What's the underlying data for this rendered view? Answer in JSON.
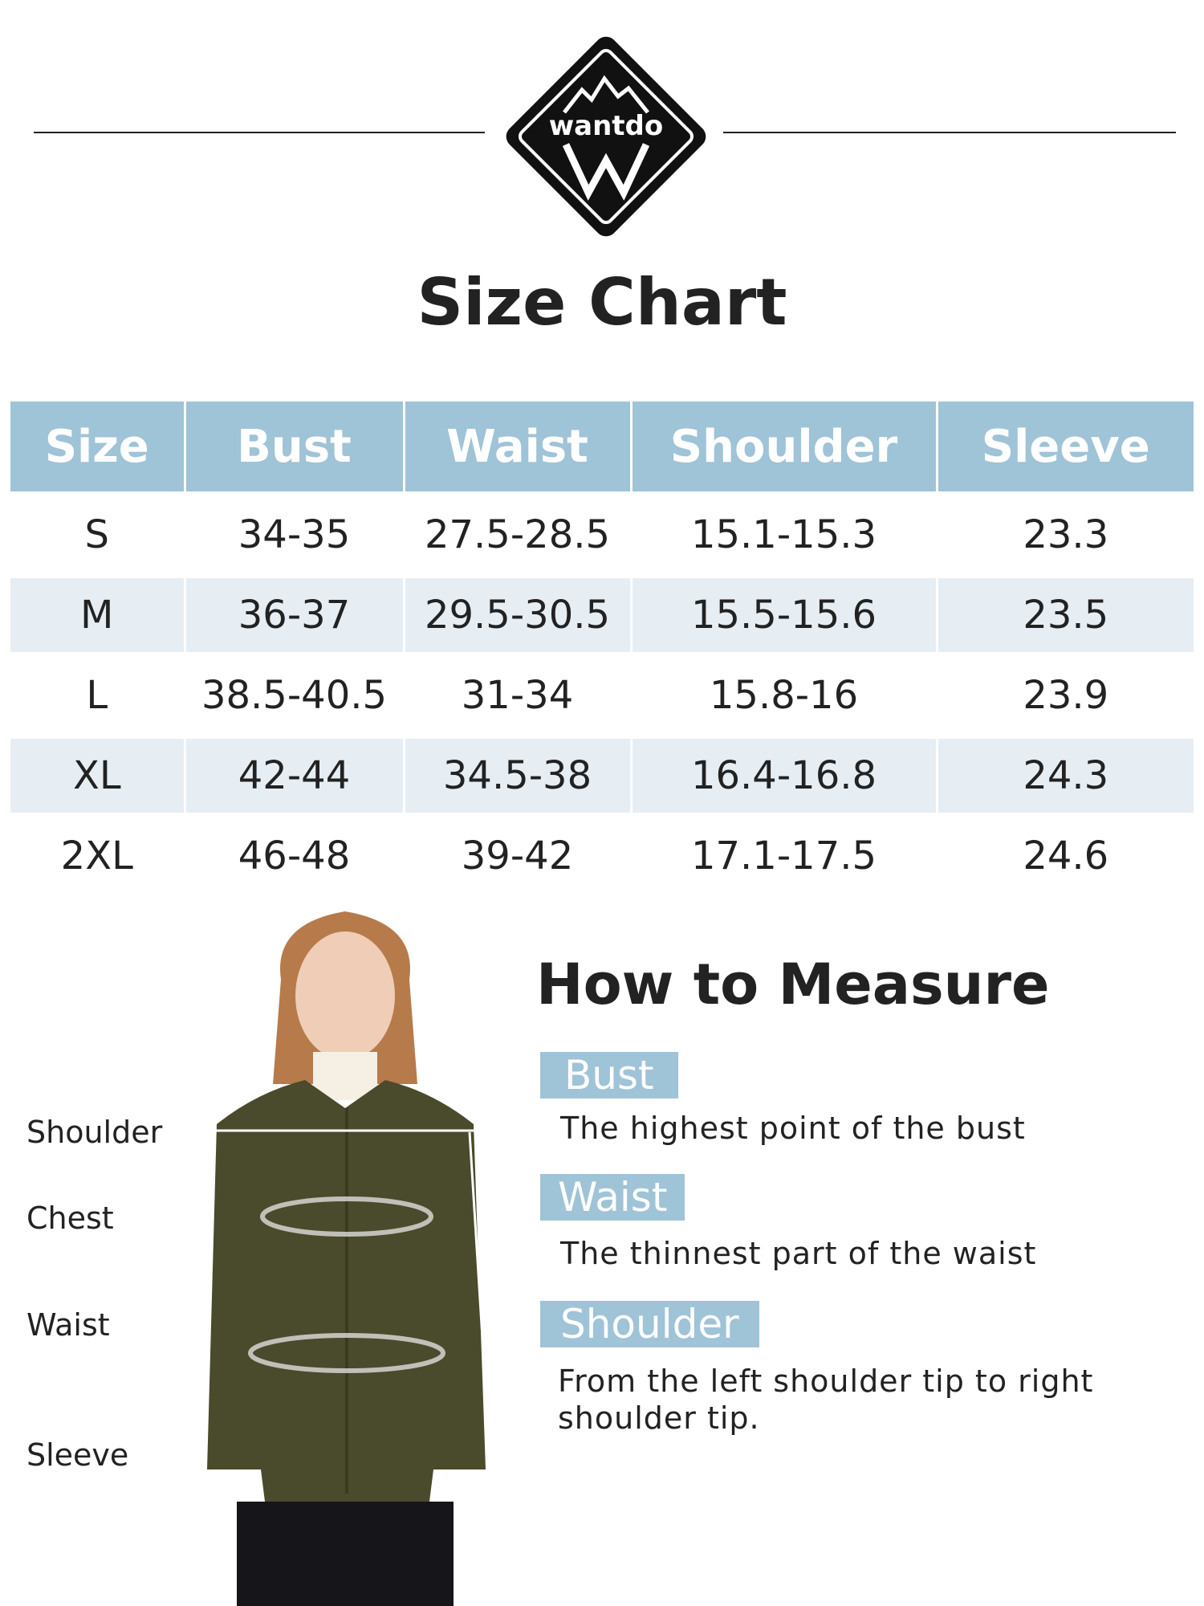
{
  "brand": {
    "logo_text": "wantdo"
  },
  "title": "Size Chart",
  "table": {
    "headers": [
      "Size",
      "Bust",
      "Waist",
      "Shoulder",
      "Sleeve"
    ],
    "rows": [
      [
        "S",
        "34-35",
        "27.5-28.5",
        "15.1-15.3",
        "23.3"
      ],
      [
        "M",
        "36-37",
        "29.5-30.5",
        "15.5-15.6",
        "23.5"
      ],
      [
        "L",
        "38.5-40.5",
        "31-34",
        "15.8-16",
        "23.9"
      ],
      [
        "XL",
        "42-44",
        "34.5-38",
        "16.4-16.8",
        "24.3"
      ],
      [
        "2XL",
        "46-48",
        "39-42",
        "17.1-17.5",
        "24.6"
      ]
    ]
  },
  "figure_labels": [
    "Shoulder",
    "Chest",
    "Waist",
    "Sleeve"
  ],
  "how_to": {
    "title": "How to Measure",
    "items": [
      {
        "label": "Bust",
        "desc": "The highest point of the bust"
      },
      {
        "label": "Waist",
        "desc": "The thinnest part of the waist"
      },
      {
        "label": "Shoulder",
        "desc": "From the left shoulder tip to right shoulder tip."
      }
    ]
  },
  "colors": {
    "header": "#9fc3d7",
    "stripe": "#e6eef4",
    "jacket": "#4a4a2c"
  }
}
